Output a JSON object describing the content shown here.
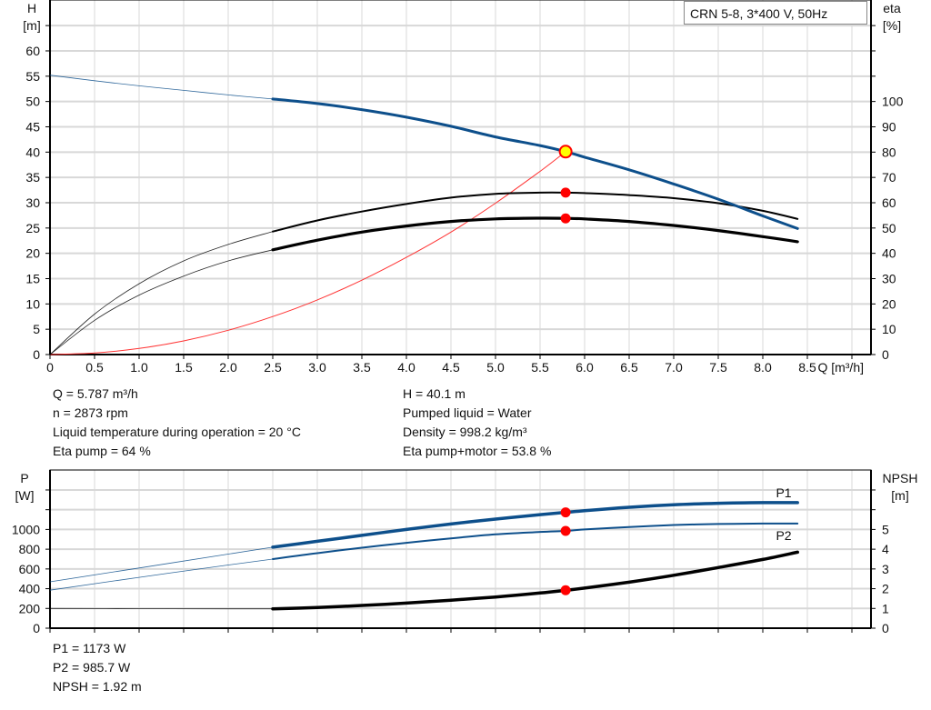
{
  "legend_title": "CRN 5-8, 3*400 V, 50Hz",
  "colors": {
    "head": "#0d4f8b",
    "power": "#0d4f8b",
    "efficiency": "#000000",
    "npsh": "#000000",
    "system": "#ff3333",
    "duty_point": "#ff0000",
    "duty_point_head": "#ffff00",
    "grid": "#d8d8d8"
  },
  "chart_data": [
    {
      "type": "line",
      "xlabel": "Q [m³/h]",
      "ylabel_left": "H",
      "ylabel_left_unit": "[m]",
      "ylabel_right": "eta",
      "ylabel_right_unit": "[%]",
      "xlim": [
        0,
        9.2
      ],
      "ylim_left": [
        0,
        70
      ],
      "ylim_right": [
        0,
        140
      ],
      "x_ticks": [
        "0",
        "0.5",
        "1.0",
        "1.5",
        "2.0",
        "2.5",
        "3.0",
        "3.5",
        "4.0",
        "4.5",
        "5.0",
        "5.5",
        "6.0",
        "6.5",
        "7.0",
        "7.5",
        "8.0",
        "8.5"
      ],
      "y_left_ticks": [
        "0",
        "5",
        "10",
        "15",
        "20",
        "25",
        "30",
        "35",
        "40",
        "45",
        "50",
        "55",
        "60"
      ],
      "y_right_ticks": [
        "0",
        "10",
        "20",
        "30",
        "40",
        "50",
        "60",
        "70",
        "80",
        "90",
        "100"
      ],
      "grid": true,
      "x": [
        0,
        0.5,
        1,
        1.5,
        2,
        2.5,
        3,
        3.5,
        4,
        4.5,
        5,
        5.5,
        5.787,
        6,
        6.5,
        7,
        7.5,
        8,
        8.39
      ],
      "series": [
        {
          "key": "head",
          "axis": "left",
          "values": [
            55.2,
            54.1,
            53.1,
            52.2,
            51.3,
            50.5,
            49.6,
            48.4,
            46.9,
            45.1,
            43.0,
            41.3,
            40.1,
            39.0,
            36.5,
            33.7,
            30.7,
            27.4,
            24.9
          ]
        },
        {
          "key": "eta_pump",
          "axis": "right",
          "values": [
            0,
            16,
            28,
            37,
            43.5,
            48.6,
            53,
            56.5,
            59.5,
            62,
            63.5,
            64,
            64,
            63.8,
            63,
            61.8,
            59.8,
            56.8,
            53.6
          ]
        },
        {
          "key": "eta_total",
          "axis": "right",
          "values": [
            0,
            13.5,
            23.5,
            31,
            37,
            41.4,
            45.2,
            48.4,
            50.8,
            52.6,
            53.6,
            53.9,
            53.8,
            53.6,
            52.6,
            51,
            49,
            46.6,
            44.6
          ]
        }
      ],
      "system_curve": {
        "x": [
          0,
          0.5,
          1,
          1.5,
          2,
          2.5,
          3,
          3.5,
          4,
          4.5,
          5,
          5.5,
          5.787
        ],
        "values": [
          0,
          0.3,
          1.2,
          2.7,
          4.8,
          7.5,
          10.8,
          14.7,
          19.2,
          24.2,
          29.9,
          36.2,
          40.1
        ]
      },
      "bold_from_x": 2.5,
      "duty_point": {
        "q": 5.787,
        "head": 40.1,
        "eta_pump": 64,
        "eta_total": 53.8
      }
    },
    {
      "type": "line",
      "ylabel_left": "P",
      "ylabel_left_unit": "[W]",
      "ylabel_right": "NPSH",
      "ylabel_right_unit": "[m]",
      "xlim": [
        0,
        9.2
      ],
      "ylim_left": [
        0,
        1600
      ],
      "ylim_right": [
        0,
        8
      ],
      "y_left_ticks": [
        "0",
        "200",
        "400",
        "600",
        "800",
        "1000"
      ],
      "y_right_ticks": [
        "0",
        "1",
        "2",
        "3",
        "4",
        "5"
      ],
      "grid": true,
      "x": [
        0,
        1,
        2,
        2.5,
        3,
        3.5,
        4,
        4.5,
        5,
        5.5,
        5.787,
        6,
        6.5,
        7,
        7.5,
        8,
        8.39
      ],
      "series": [
        {
          "key": "P1",
          "name": "P1",
          "axis": "left",
          "values": [
            470,
            610,
            750,
            820,
            880,
            940,
            1000,
            1055,
            1105,
            1150,
            1173,
            1190,
            1225,
            1250,
            1265,
            1272,
            1272
          ]
        },
        {
          "key": "P2",
          "name": "P2",
          "axis": "left",
          "values": [
            385,
            515,
            640,
            700,
            760,
            815,
            865,
            910,
            950,
            975,
            985.7,
            1000,
            1025,
            1045,
            1055,
            1060,
            1060
          ]
        },
        {
          "key": "NPSH",
          "axis": "right",
          "values": [
            1.0,
            0.99,
            0.98,
            0.98,
            1.05,
            1.15,
            1.27,
            1.42,
            1.58,
            1.78,
            1.92,
            2.03,
            2.33,
            2.68,
            3.07,
            3.48,
            3.85
          ]
        }
      ],
      "bold_from_x": 2.5,
      "duty_point": {
        "q": 5.787,
        "P1": 1173,
        "P2": 985.7,
        "NPSH": 1.92
      }
    }
  ],
  "info_top_left": [
    "Q = 5.787 m³/h",
    "n = 2873 rpm",
    "Liquid temperature during operation = 20 °C",
    "Eta pump = 64 %"
  ],
  "info_top_right": [
    "H = 40.1 m",
    "Pumped liquid = Water",
    "Density = 998.2 kg/m³",
    "Eta pump+motor = 53.8 %"
  ],
  "info_bottom": [
    "P1 = 1173 W",
    "P2 = 985.7 W",
    "NPSH = 1.92 m"
  ]
}
